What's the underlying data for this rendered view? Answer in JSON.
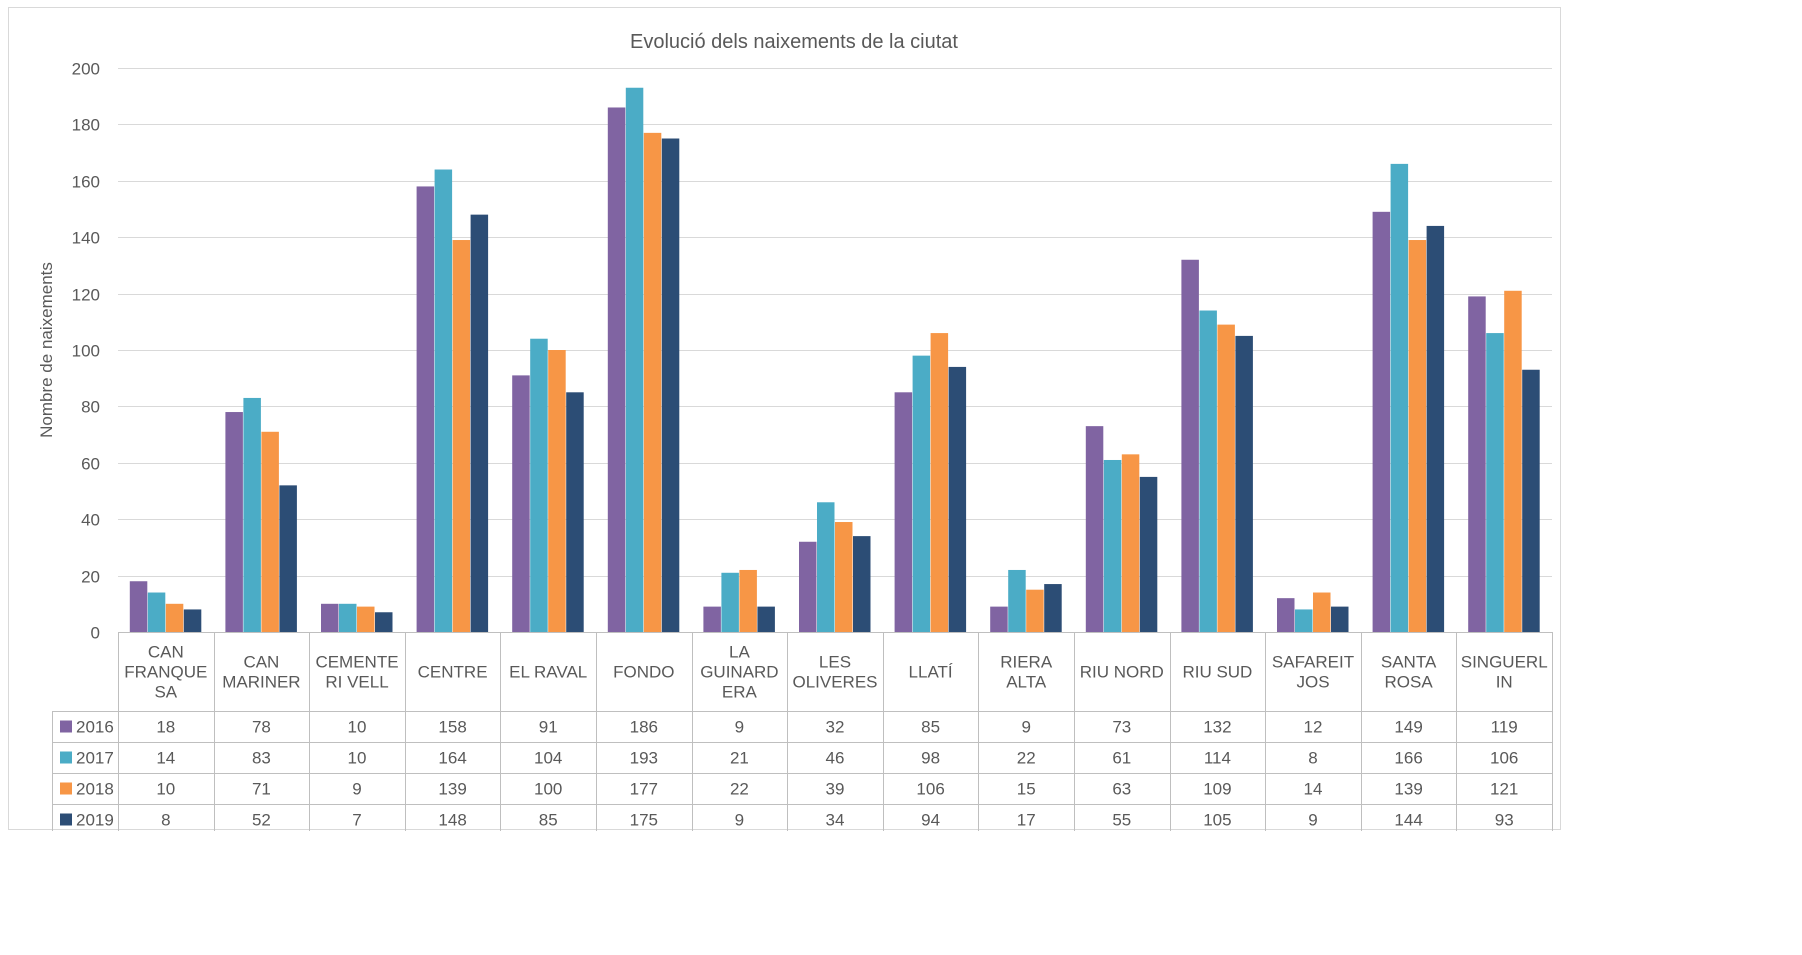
{
  "chart_data": {
    "type": "bar",
    "title": "Evolució dels naixements de la ciutat",
    "xlabel": "",
    "ylabel": "Nombre de naixements",
    "ylim": [
      0,
      200
    ],
    "yticks": [
      0,
      20,
      40,
      60,
      80,
      100,
      120,
      140,
      160,
      180,
      200
    ],
    "grid": true,
    "legend": "data-table",
    "categories": [
      "CAN FRANQUESA",
      "CAN MARINER",
      "CEMENTERI VELL",
      "CENTRE",
      "EL RAVAL",
      "FONDO",
      "LA GUINARDERA",
      "LES OLIVERES",
      "LLATÍ",
      "RIERA ALTA",
      "RIU NORD",
      "RIU SUD",
      "SAFAREITJOS",
      "SANTA ROSA",
      "SINGUERLIN"
    ],
    "category_label_lines": [
      [
        "CAN",
        "FRANQUE",
        "SA"
      ],
      [
        "CAN",
        "MARINER"
      ],
      [
        "CEMENTE",
        "RI VELL"
      ],
      [
        "CENTRE"
      ],
      [
        "EL RAVAL"
      ],
      [
        "FONDO"
      ],
      [
        "LA",
        "GUINARD",
        "ERA"
      ],
      [
        "LES",
        "OLIVERES"
      ],
      [
        "LLATÍ"
      ],
      [
        "RIERA",
        "ALTA"
      ],
      [
        "RIU NORD"
      ],
      [
        "RIU SUD"
      ],
      [
        "SAFAREIT",
        "JOS"
      ],
      [
        "SANTA",
        "ROSA"
      ],
      [
        "SINGUERL",
        "IN"
      ]
    ],
    "series": [
      {
        "name": "2016",
        "color": "#8064a2",
        "values": [
          18,
          78,
          10,
          158,
          91,
          186,
          9,
          32,
          85,
          9,
          73,
          132,
          12,
          149,
          119
        ]
      },
      {
        "name": "2017",
        "color": "#4bacc6",
        "values": [
          14,
          83,
          10,
          164,
          104,
          193,
          21,
          46,
          98,
          22,
          61,
          114,
          8,
          166,
          106
        ]
      },
      {
        "name": "2018",
        "color": "#f79646",
        "values": [
          10,
          71,
          9,
          139,
          100,
          177,
          22,
          39,
          106,
          15,
          63,
          109,
          14,
          139,
          121
        ]
      },
      {
        "name": "2019",
        "color": "#2c4d75",
        "values": [
          8,
          52,
          7,
          148,
          85,
          175,
          9,
          34,
          94,
          17,
          55,
          105,
          9,
          144,
          93
        ]
      }
    ]
  }
}
